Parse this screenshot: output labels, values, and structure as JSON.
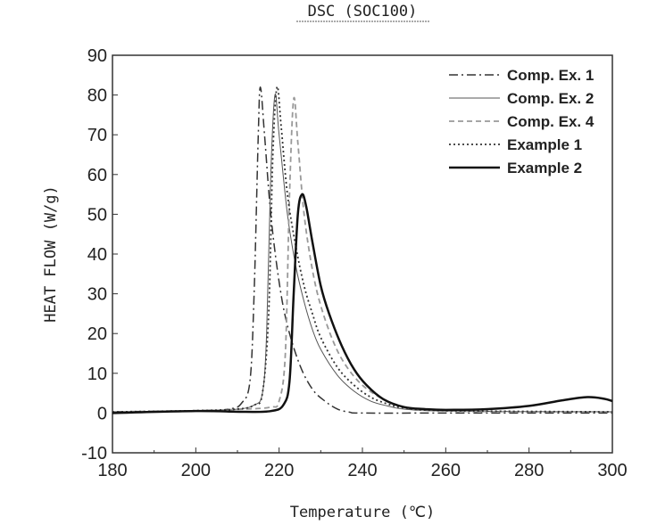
{
  "chart_data": {
    "type": "line",
    "title": "DSC (SOC100)",
    "xlabel": "Temperature (℃)",
    "ylabel": "HEAT FLOW (W/g)",
    "xlim": [
      180,
      300
    ],
    "ylim": [
      -10,
      90
    ],
    "xticks": [
      180,
      200,
      220,
      240,
      260,
      280,
      300
    ],
    "yticks": [
      -10,
      0,
      10,
      20,
      30,
      40,
      50,
      60,
      70,
      80,
      90
    ],
    "grid": false,
    "legend_position": "top-right",
    "series": [
      {
        "name": "Comp. Ex. 1",
        "style": "dashdot",
        "color": "#333333",
        "x": [
          180,
          200,
          208,
          211,
          213,
          214,
          215,
          215.5,
          216.5,
          218,
          220,
          222,
          225,
          228,
          231,
          234,
          237,
          240,
          260,
          300
        ],
        "y": [
          0.3,
          0.6,
          1,
          2.5,
          8,
          30,
          70,
          82,
          70,
          50,
          33,
          22,
          12,
          6,
          3,
          1,
          0.2,
          0,
          0,
          0
        ]
      },
      {
        "name": "Comp. Ex. 2",
        "style": "solid-thin",
        "color": "#555555",
        "x": [
          180,
          200,
          210,
          214,
          216,
          217,
          218,
          219,
          220,
          222,
          224,
          226,
          228,
          230,
          234,
          238,
          242,
          246,
          250,
          260,
          300
        ],
        "y": [
          0.3,
          0.6,
          1,
          2,
          5,
          20,
          60,
          80,
          70,
          50,
          37,
          28,
          21,
          16,
          9.5,
          5.5,
          3,
          1.8,
          1,
          0.5,
          0.3
        ]
      },
      {
        "name": "Comp. Ex. 4",
        "style": "dashed",
        "color": "#999999",
        "x": [
          180,
          200,
          212,
          218,
          220,
          221.5,
          222.5,
          223.5,
          224.5,
          226,
          228,
          230,
          233,
          236,
          240,
          245,
          250,
          260,
          300
        ],
        "y": [
          0.3,
          0.6,
          1,
          1.5,
          3,
          15,
          55,
          79,
          68,
          50,
          36,
          27,
          18,
          12,
          7,
          3.5,
          1.5,
          0.5,
          0.3
        ]
      },
      {
        "name": "Example 1",
        "style": "dotted",
        "color": "#333333",
        "x": [
          180,
          200,
          210,
          214,
          216,
          217.5,
          218.5,
          219.5,
          220.5,
          222,
          224,
          226,
          228,
          230,
          234,
          238,
          242,
          246,
          250,
          260,
          300
        ],
        "y": [
          0.3,
          0.6,
          1,
          2,
          5,
          25,
          65,
          82,
          72,
          55,
          42,
          32,
          25,
          19,
          11.5,
          7,
          4,
          2.3,
          1.3,
          0.6,
          0.3
        ]
      },
      {
        "name": "Example 2",
        "style": "solid-thick",
        "color": "#111111",
        "x": [
          180,
          200,
          212,
          218,
          221,
          222.5,
          223.5,
          224.5,
          225.5,
          226.5,
          228,
          230,
          232,
          235,
          238,
          241,
          245,
          250,
          255,
          260,
          270,
          280,
          288,
          294,
          298,
          300
        ],
        "y": [
          0,
          0.5,
          0.3,
          0.5,
          2,
          8,
          30,
          50,
          55,
          52,
          43,
          32,
          25,
          17,
          11,
          7,
          3.5,
          1.5,
          1,
          0.8,
          1,
          1.8,
          3.2,
          4,
          3.6,
          3
        ]
      }
    ]
  }
}
